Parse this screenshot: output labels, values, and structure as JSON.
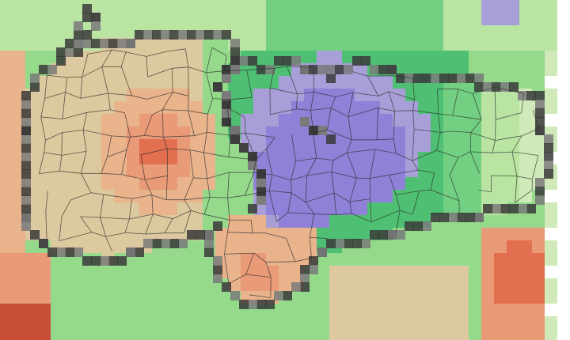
{
  "map": {
    "type": "pixelated-raster-with-district-boundaries",
    "palette": {
      "dark_purple": "#8f80d8",
      "light_purple": "#a99fd8",
      "grey_lavender": "#b3b0c8",
      "dark_green": "#4fbf73",
      "green": "#73cf81",
      "mid_green": "#95d98b",
      "light_green": "#b9e4a2",
      "pale_green": "#cfeab8",
      "tan": "#ddc99f",
      "peach": "#e9b38c",
      "salmon": "#e99a77",
      "red_orange": "#e16f50",
      "deep_red": "#c85038",
      "white": "#ffffff",
      "boundary_dark": "#3a3a3a",
      "boundary_grey": "#7a7a7a",
      "district_line": "#2b2b2b"
    },
    "regions": [
      {
        "name": "western-zone",
        "fill": "tan"
      },
      {
        "name": "central-zone",
        "fill": "dark_purple"
      },
      {
        "name": "eastern-zone",
        "fill": "light_green"
      },
      {
        "name": "southern-pocket",
        "fill": "peach"
      }
    ]
  }
}
